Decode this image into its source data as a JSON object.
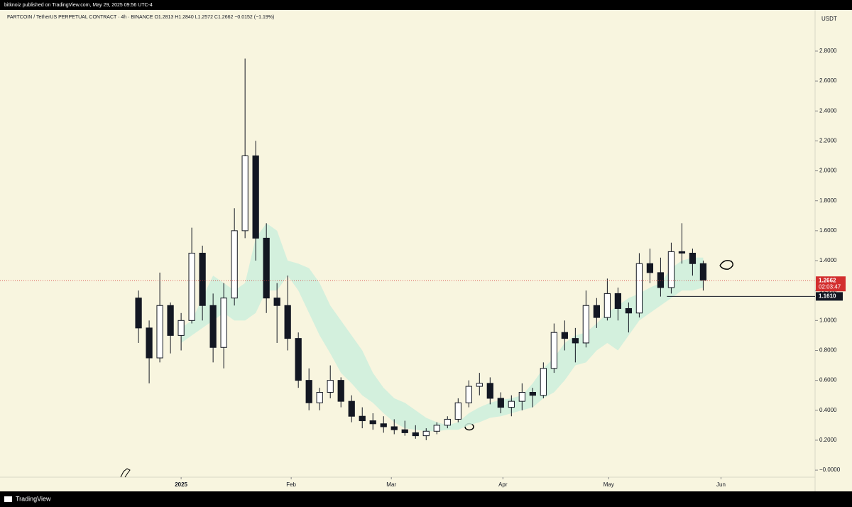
{
  "header": "bitknoiz published on TradingView.com, May 29, 2025 09:56 UTC-4",
  "footer": "TradingView",
  "chart_data": {
    "type": "candlestick",
    "title": "FARTCOIN / TetherUS PERPETUAL CONTRACT · 4h · BINANCE  O1.2813  H1.2840  L1.2572  C1.2662  −0.0152 (−1.19%)",
    "currency": "USDT",
    "open": [
      1.15,
      0.95,
      0.75,
      1.1,
      0.9,
      1.0,
      1.45,
      1.1,
      0.82,
      1.15,
      1.6,
      2.1,
      1.55,
      1.15,
      1.1,
      0.88,
      0.6,
      0.45,
      0.52,
      0.6,
      0.46,
      0.36,
      0.33,
      0.31,
      0.29,
      0.27,
      0.25,
      0.23,
      0.26,
      0.3,
      0.34,
      0.45,
      0.56,
      0.58,
      0.48,
      0.42,
      0.46,
      0.52,
      0.5,
      0.68,
      0.92,
      0.88,
      0.85,
      1.1,
      1.02,
      1.18,
      1.08,
      1.05,
      1.38,
      1.32,
      1.22,
      1.46,
      1.45,
      1.38
    ],
    "high": [
      1.2,
      1.0,
      1.32,
      1.12,
      1.05,
      1.62,
      1.5,
      1.18,
      1.25,
      1.75,
      2.75,
      2.2,
      1.65,
      1.25,
      1.3,
      0.92,
      0.68,
      0.55,
      0.7,
      0.62,
      0.5,
      0.42,
      0.38,
      0.36,
      0.34,
      0.33,
      0.3,
      0.28,
      0.32,
      0.36,
      0.48,
      0.6,
      0.65,
      0.62,
      0.52,
      0.5,
      0.58,
      0.55,
      0.72,
      0.98,
      1.0,
      0.95,
      1.2,
      1.15,
      1.28,
      1.22,
      1.12,
      1.45,
      1.48,
      1.42,
      1.52,
      1.65,
      1.48,
      1.4
    ],
    "low": [
      0.85,
      0.58,
      0.72,
      0.78,
      0.8,
      0.98,
      1.0,
      0.72,
      0.68,
      1.1,
      1.55,
      1.4,
      1.05,
      0.85,
      0.8,
      0.55,
      0.4,
      0.4,
      0.48,
      0.42,
      0.32,
      0.28,
      0.27,
      0.25,
      0.24,
      0.23,
      0.21,
      0.2,
      0.24,
      0.28,
      0.32,
      0.42,
      0.5,
      0.44,
      0.38,
      0.36,
      0.4,
      0.42,
      0.48,
      0.65,
      0.8,
      0.72,
      0.82,
      0.95,
      1.0,
      1.0,
      0.92,
      1.02,
      1.25,
      1.16,
      1.18,
      1.38,
      1.3,
      1.2
    ],
    "close": [
      0.95,
      0.75,
      1.1,
      0.9,
      1.0,
      1.45,
      1.1,
      0.82,
      1.15,
      1.6,
      2.1,
      1.55,
      1.15,
      1.1,
      0.88,
      0.6,
      0.45,
      0.52,
      0.6,
      0.46,
      0.36,
      0.33,
      0.31,
      0.29,
      0.27,
      0.25,
      0.23,
      0.26,
      0.3,
      0.34,
      0.45,
      0.56,
      0.58,
      0.48,
      0.42,
      0.46,
      0.52,
      0.5,
      0.68,
      0.92,
      0.88,
      0.85,
      1.1,
      1.02,
      1.18,
      1.08,
      1.05,
      1.38,
      1.32,
      1.22,
      1.46,
      1.45,
      1.38,
      1.27
    ],
    "cloud": {
      "color": "#cdeedd",
      "lower": [
        null,
        null,
        null,
        null,
        0.85,
        0.9,
        0.95,
        1.0,
        1.05,
        1.0,
        1.0,
        1.05,
        1.2,
        1.2,
        1.3,
        1.2,
        1.05,
        0.9,
        0.78,
        0.65,
        0.58,
        0.5,
        0.45,
        0.38,
        0.32,
        0.28,
        0.27,
        0.26,
        0.26,
        0.27,
        0.27,
        0.3,
        0.32,
        0.35,
        0.36,
        0.38,
        0.4,
        0.42,
        0.48,
        0.52,
        0.6,
        0.7,
        0.72,
        0.8,
        0.85,
        0.8,
        0.9,
        1.0,
        1.05,
        1.1,
        1.15,
        1.2,
        1.2,
        1.22
      ],
      "upper": [
        null,
        null,
        null,
        null,
        0.95,
        1.0,
        1.15,
        1.3,
        1.25,
        1.2,
        1.25,
        1.55,
        1.65,
        1.6,
        1.4,
        1.38,
        1.35,
        1.25,
        1.1,
        1.0,
        0.9,
        0.8,
        0.65,
        0.55,
        0.48,
        0.45,
        0.4,
        0.35,
        0.32,
        0.3,
        0.32,
        0.38,
        0.42,
        0.45,
        0.47,
        0.48,
        0.5,
        0.58,
        0.68,
        0.75,
        0.85,
        0.9,
        0.92,
        0.98,
        1.05,
        1.1,
        1.15,
        1.18,
        1.22,
        1.25,
        1.35,
        1.4,
        1.42,
        1.42
      ]
    },
    "color": "#131722",
    "up_color": "#ffffff",
    "down_color": "#131722",
    "xlim": [
      -13,
      63.5
    ],
    "xticks": [
      {
        "value": 4,
        "label": "2025"
      },
      {
        "value": 14.33,
        "label": "Feb"
      },
      {
        "value": 23.73,
        "label": "Mar"
      },
      {
        "value": 34.2,
        "label": "Apr"
      },
      {
        "value": 44.13,
        "label": "May"
      },
      {
        "value": 54.67,
        "label": "Jun"
      }
    ],
    "ylim": [
      -0.047,
      3.075
    ],
    "yticks": [
      {
        "value": 0,
        "label": "−0.0000"
      },
      {
        "value": 0.2,
        "label": "0.2000"
      },
      {
        "value": 0.4,
        "label": "0.4000"
      },
      {
        "value": 0.6,
        "label": "0.6000"
      },
      {
        "value": 0.8,
        "label": "0.8000"
      },
      {
        "value": 1,
        "label": "1.0000"
      },
      {
        "value": 1.2,
        "label": "1.2000"
      },
      {
        "value": 1.4,
        "label": "1.4000"
      },
      {
        "value": 1.6,
        "label": "1.6000"
      },
      {
        "value": 1.8,
        "label": "1.8000"
      },
      {
        "value": 2,
        "label": "2.0000"
      },
      {
        "value": 2.2,
        "label": "2.2000"
      },
      {
        "value": 2.4,
        "label": "2.4000"
      },
      {
        "value": 2.6,
        "label": "2.6000"
      },
      {
        "value": 2.8,
        "label": "2.8000"
      }
    ],
    "last_price": {
      "value": 1.2662,
      "timer": "02:03:47",
      "color": "#d32f2f"
    },
    "level": {
      "value": {
        "value": 1.161,
        "label": "1.1610"
      },
      "start": 49.6,
      "color": "#131722"
    }
  }
}
